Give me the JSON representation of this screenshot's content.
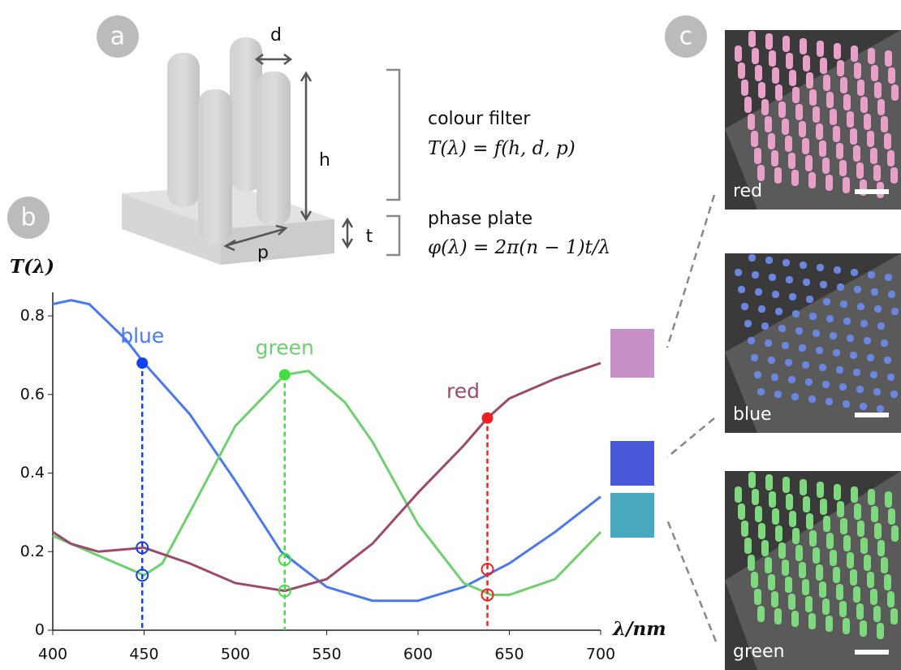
{
  "panel_labels": [
    "a",
    "b",
    "c"
  ],
  "diagram": {
    "d_label": "d",
    "h_label": "h",
    "t_label": "t",
    "p_label": "p",
    "filter_title": "colour filter",
    "filter_formula": "T(λ) = f(h, d, p)",
    "plate_title": "phase plate",
    "plate_formula": "φ(λ) = 2π(n − 1)t/λ"
  },
  "sem_images": [
    {
      "label": "red",
      "color": "#e8a0c8"
    },
    {
      "label": "blue",
      "color": "#6b86e0"
    },
    {
      "label": "green",
      "color": "#7ed87e"
    }
  ],
  "chart_data": {
    "type": "line",
    "ylabel": "T(λ)",
    "xlabel": "λ/nm",
    "xlim": [
      400,
      700
    ],
    "xticks": [
      400,
      450,
      500,
      550,
      600,
      650,
      700
    ],
    "ylim": [
      0,
      0.86
    ],
    "yticks": [
      0,
      0.2,
      0.4,
      0.6,
      0.8
    ],
    "series": [
      {
        "name": "blue",
        "color": "#4a78f0",
        "x": [
          400,
          410,
          420,
          440,
          450,
          475,
          500,
          525,
          550,
          575,
          600,
          625,
          650,
          675,
          700
        ],
        "values": [
          0.83,
          0.84,
          0.83,
          0.74,
          0.68,
          0.55,
          0.38,
          0.2,
          0.11,
          0.075,
          0.075,
          0.11,
          0.17,
          0.25,
          0.34
        ]
      },
      {
        "name": "green",
        "color": "#6fd06f",
        "x": [
          400,
          425,
          450,
          460,
          475,
          500,
          527,
          540,
          560,
          575,
          600,
          625,
          640,
          650,
          675,
          700
        ],
        "values": [
          0.24,
          0.19,
          0.14,
          0.17,
          0.3,
          0.52,
          0.65,
          0.66,
          0.58,
          0.48,
          0.27,
          0.12,
          0.09,
          0.09,
          0.13,
          0.25
        ]
      },
      {
        "name": "red",
        "color": "#9b4a6c",
        "x": [
          400,
          410,
          425,
          450,
          475,
          500,
          527,
          550,
          575,
          600,
          625,
          638,
          650,
          675,
          700
        ],
        "values": [
          0.25,
          0.22,
          0.2,
          0.21,
          0.17,
          0.12,
          0.1,
          0.13,
          0.22,
          0.35,
          0.47,
          0.54,
          0.59,
          0.64,
          0.68
        ]
      }
    ],
    "markers": [
      {
        "name": "blue",
        "color": "#1040f0",
        "x": 449,
        "y": 0.68,
        "open": [
          0.21,
          0.14
        ]
      },
      {
        "name": "green",
        "color": "#40e040",
        "x": 527,
        "y": 0.65,
        "open": [
          0.18,
          0.1
        ]
      },
      {
        "name": "red",
        "color": "#f02020",
        "x": 638,
        "y": 0.54,
        "open": [
          0.155,
          0.09
        ]
      }
    ]
  }
}
